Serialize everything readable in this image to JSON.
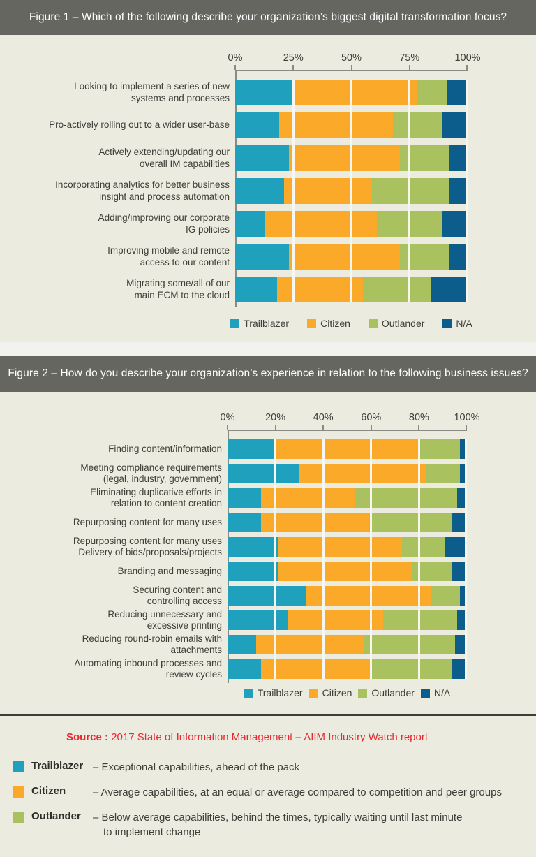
{
  "colors": {
    "trailblazer": "#1FA0BD",
    "citizen": "#FAA928",
    "outlander": "#A9C25F",
    "na": "#0C5D8C",
    "title_bar": "#666661",
    "background": "#ECEBE0",
    "axis": "#8B8B86",
    "source_red": "#E7282E"
  },
  "chart_data": [
    {
      "type": "bar",
      "stacked": true,
      "orientation": "horizontal",
      "title": "Figure 1 – Which of the following describe your organization’s biggest digital transformation focus?",
      "x_ticks": [
        "0%",
        "25%",
        "50%",
        "75%",
        "100%"
      ],
      "xlim": [
        0,
        100
      ],
      "grid": true,
      "legend_position": "bottom",
      "categories": [
        "Looking to  implement a series of new\nsystems and processes",
        "Pro-actively rolling out to a wider user-base",
        "Actively extending/updating our\noverall IM capabilities",
        "Incorporating analytics for better business\ninsight and process automation",
        "Adding/improving our corporate\nIG policies",
        "Improving mobile and remote\naccess to our content",
        "Migrating some/all of our\nmain ECM to the cloud"
      ],
      "series": [
        {
          "name": "Trailblazer",
          "color": "#1FA0BD",
          "values": [
            25,
            19,
            23,
            21,
            13,
            23,
            18
          ]
        },
        {
          "name": "Citizen",
          "color": "#FAA928",
          "values": [
            53,
            49,
            48,
            38,
            48,
            48,
            37
          ]
        },
        {
          "name": "Outlander",
          "color": "#A9C25F",
          "values": [
            13,
            21,
            21,
            33,
            28,
            21,
            29
          ]
        },
        {
          "name": "N/A",
          "color": "#0C5D8C",
          "values": [
            9,
            11,
            8,
            8,
            11,
            8,
            16
          ]
        }
      ]
    },
    {
      "type": "bar",
      "stacked": true,
      "orientation": "horizontal",
      "title": "Figure 2 – How do you describe your organization’s experience in relation to the following business issues?",
      "x_ticks": [
        "0%",
        "20%",
        "40%",
        "60%",
        "80%",
        "100%"
      ],
      "xlim": [
        0,
        100
      ],
      "grid": true,
      "legend_position": "bottom",
      "categories": [
        "Finding content/information",
        "Meeting compliance requirements\n(legal, industry, government)",
        "Eliminating duplicative efforts in\nrelation to content creation",
        "Repurposing content for many uses",
        "Repurposing content for many uses\nDelivery of bids/proposals/projects",
        "Branding and messaging",
        "Securing content and\ncontrolling access",
        "Reducing unnecessary and\nexcessive printing",
        "Reducing round-robin emails with\nattachments",
        "Automating inbound processes and\nreview cycles"
      ],
      "series": [
        {
          "name": "Trailblazer",
          "color": "#1FA0BD",
          "values": [
            20,
            30,
            14,
            14,
            21,
            21,
            33,
            25,
            12,
            14
          ]
        },
        {
          "name": "Citizen",
          "color": "#FAA928",
          "values": [
            60,
            53,
            39,
            45,
            52,
            56,
            52,
            40,
            45,
            46
          ]
        },
        {
          "name": "Outlander",
          "color": "#A9C25F",
          "values": [
            17,
            14,
            43,
            35,
            18,
            17,
            12,
            31,
            38,
            34
          ]
        },
        {
          "name": "N/A",
          "color": "#0C5D8C",
          "values": [
            3,
            3,
            4,
            6,
            9,
            6,
            3,
            4,
            5,
            6
          ]
        }
      ]
    }
  ],
  "footer": {
    "source_label": "Source :",
    "source_text": "2017 State of Information Management – AIIM Industry Watch report",
    "definitions": [
      {
        "term": "Trailblazer",
        "color": "#1FA0BD",
        "desc": "– Exceptional capabilities, ahead of the pack"
      },
      {
        "term": "Citizen",
        "color": "#FAA928",
        "desc": "– Average capabilities, at an equal or average compared to competition and peer groups"
      },
      {
        "term": "Outlander",
        "color": "#A9C25F",
        "desc": "– Below average capabilities, behind the times, typically waiting until last minute\nto implement change"
      }
    ]
  }
}
